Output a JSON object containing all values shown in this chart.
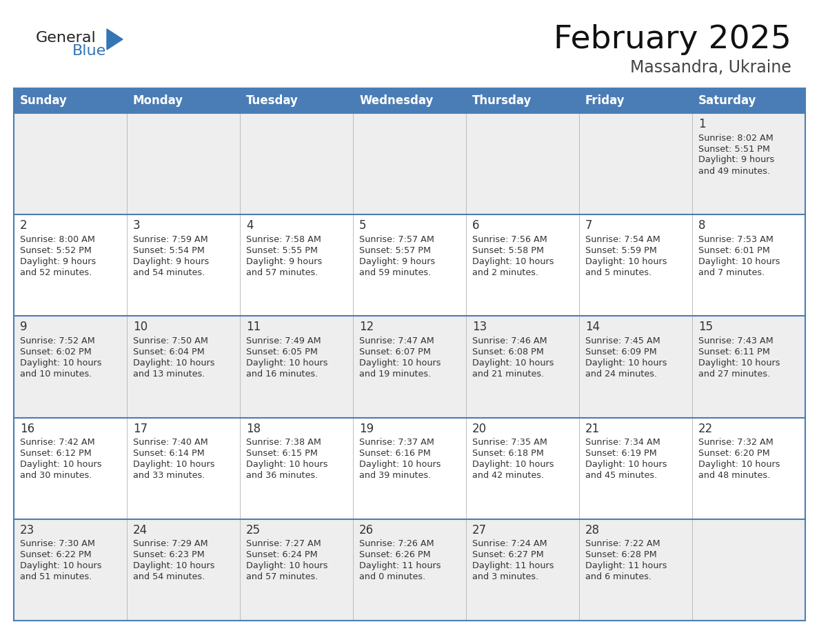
{
  "title": "February 2025",
  "subtitle": "Massandra, Ukraine",
  "days_of_week": [
    "Sunday",
    "Monday",
    "Tuesday",
    "Wednesday",
    "Thursday",
    "Friday",
    "Saturday"
  ],
  "header_bg": "#4A7DB5",
  "header_text": "#FFFFFF",
  "cell_bg_gray": "#EEEEEE",
  "cell_bg_white": "#FFFFFF",
  "cell_border_color": "#BBBBBB",
  "row_separator_color": "#4A7DB5",
  "day_number_color": "#333333",
  "text_color": "#333333",
  "logo_general_color": "#222222",
  "logo_blue_color": "#3375B5",
  "title_color": "#111111",
  "subtitle_color": "#444444",
  "calendar_data": [
    [
      null,
      null,
      null,
      null,
      null,
      null,
      {
        "day": 1,
        "sunrise": "8:02 AM",
        "sunset": "5:51 PM",
        "daylight": "9 hours and 49 minutes"
      }
    ],
    [
      {
        "day": 2,
        "sunrise": "8:00 AM",
        "sunset": "5:52 PM",
        "daylight": "9 hours and 52 minutes"
      },
      {
        "day": 3,
        "sunrise": "7:59 AM",
        "sunset": "5:54 PM",
        "daylight": "9 hours and 54 minutes"
      },
      {
        "day": 4,
        "sunrise": "7:58 AM",
        "sunset": "5:55 PM",
        "daylight": "9 hours and 57 minutes"
      },
      {
        "day": 5,
        "sunrise": "7:57 AM",
        "sunset": "5:57 PM",
        "daylight": "9 hours and 59 minutes"
      },
      {
        "day": 6,
        "sunrise": "7:56 AM",
        "sunset": "5:58 PM",
        "daylight": "10 hours and 2 minutes"
      },
      {
        "day": 7,
        "sunrise": "7:54 AM",
        "sunset": "5:59 PM",
        "daylight": "10 hours and 5 minutes"
      },
      {
        "day": 8,
        "sunrise": "7:53 AM",
        "sunset": "6:01 PM",
        "daylight": "10 hours and 7 minutes"
      }
    ],
    [
      {
        "day": 9,
        "sunrise": "7:52 AM",
        "sunset": "6:02 PM",
        "daylight": "10 hours and 10 minutes"
      },
      {
        "day": 10,
        "sunrise": "7:50 AM",
        "sunset": "6:04 PM",
        "daylight": "10 hours and 13 minutes"
      },
      {
        "day": 11,
        "sunrise": "7:49 AM",
        "sunset": "6:05 PM",
        "daylight": "10 hours and 16 minutes"
      },
      {
        "day": 12,
        "sunrise": "7:47 AM",
        "sunset": "6:07 PM",
        "daylight": "10 hours and 19 minutes"
      },
      {
        "day": 13,
        "sunrise": "7:46 AM",
        "sunset": "6:08 PM",
        "daylight": "10 hours and 21 minutes"
      },
      {
        "day": 14,
        "sunrise": "7:45 AM",
        "sunset": "6:09 PM",
        "daylight": "10 hours and 24 minutes"
      },
      {
        "day": 15,
        "sunrise": "7:43 AM",
        "sunset": "6:11 PM",
        "daylight": "10 hours and 27 minutes"
      }
    ],
    [
      {
        "day": 16,
        "sunrise": "7:42 AM",
        "sunset": "6:12 PM",
        "daylight": "10 hours and 30 minutes"
      },
      {
        "day": 17,
        "sunrise": "7:40 AM",
        "sunset": "6:14 PM",
        "daylight": "10 hours and 33 minutes"
      },
      {
        "day": 18,
        "sunrise": "7:38 AM",
        "sunset": "6:15 PM",
        "daylight": "10 hours and 36 minutes"
      },
      {
        "day": 19,
        "sunrise": "7:37 AM",
        "sunset": "6:16 PM",
        "daylight": "10 hours and 39 minutes"
      },
      {
        "day": 20,
        "sunrise": "7:35 AM",
        "sunset": "6:18 PM",
        "daylight": "10 hours and 42 minutes"
      },
      {
        "day": 21,
        "sunrise": "7:34 AM",
        "sunset": "6:19 PM",
        "daylight": "10 hours and 45 minutes"
      },
      {
        "day": 22,
        "sunrise": "7:32 AM",
        "sunset": "6:20 PM",
        "daylight": "10 hours and 48 minutes"
      }
    ],
    [
      {
        "day": 23,
        "sunrise": "7:30 AM",
        "sunset": "6:22 PM",
        "daylight": "10 hours and 51 minutes"
      },
      {
        "day": 24,
        "sunrise": "7:29 AM",
        "sunset": "6:23 PM",
        "daylight": "10 hours and 54 minutes"
      },
      {
        "day": 25,
        "sunrise": "7:27 AM",
        "sunset": "6:24 PM",
        "daylight": "10 hours and 57 minutes"
      },
      {
        "day": 26,
        "sunrise": "7:26 AM",
        "sunset": "6:26 PM",
        "daylight": "11 hours and 0 minutes"
      },
      {
        "day": 27,
        "sunrise": "7:24 AM",
        "sunset": "6:27 PM",
        "daylight": "11 hours and 3 minutes"
      },
      {
        "day": 28,
        "sunrise": "7:22 AM",
        "sunset": "6:28 PM",
        "daylight": "11 hours and 6 minutes"
      },
      null
    ]
  ],
  "row_bg": [
    "#EEEEEE",
    "#FFFFFF",
    "#EEEEEE",
    "#FFFFFF",
    "#EEEEEE"
  ]
}
